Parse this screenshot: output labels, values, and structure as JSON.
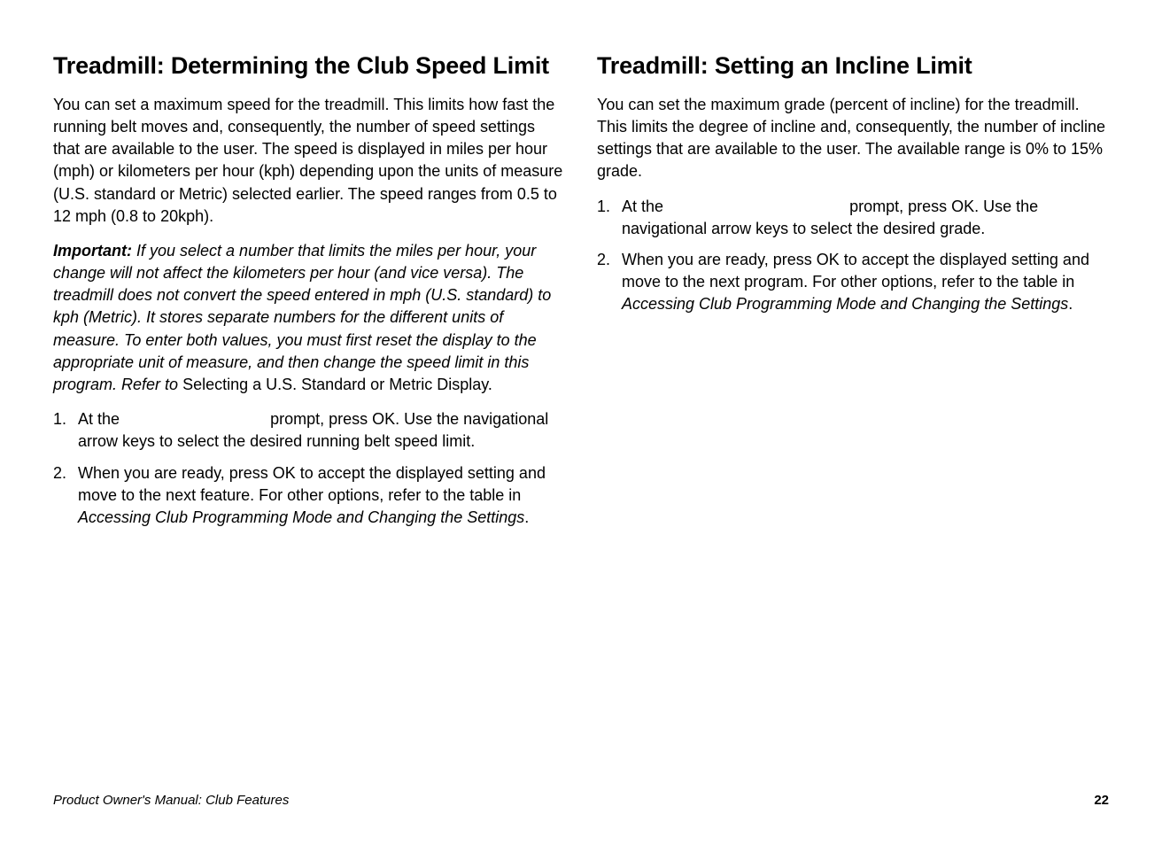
{
  "leftColumn": {
    "heading": "Treadmill: Determining the Club Speed Limit",
    "intro": "You can set a maximum speed for the treadmill. This limits how fast the running belt moves and, consequently, the number of speed settings that are available to the user. The speed is displayed in miles per hour (mph) or kilometers per hour (kph) depending upon the units of measure (U.S. standard or Metric) selected earlier. The speed ranges from 0.5 to 12 mph (0.8 to 20kph).",
    "importantLabel": "Important:",
    "importantItalic": " If you select a number that limits the miles per hour, your change will not affect the kilometers per hour (and vice versa). The treadmill does not convert the speed entered in mph (U.S. standard) to kph (Metric). It stores separate numbers for the different units of measure. To enter both values, you must first reset the display to the appropriate unit of measure, and then change the speed limit in this program. Refer to ",
    "importantTail": "Selecting a U.S. Standard or Metric Display.",
    "step1a": "At the ",
    "step1gap": "                                ",
    "step1b": " prompt, press OK. Use the navigational arrow keys to select the desired running belt speed limit.",
    "step2a": "When you are ready, press OK to accept the displayed setting and move to the next feature. For other options, refer to the table in ",
    "step2ital": "Accessing Club Programming Mode and Changing the Settings",
    "step2b": "."
  },
  "rightColumn": {
    "heading": "Treadmill: Setting an Incline Limit",
    "intro": "You can set the maximum grade (percent of incline) for the treadmill. This limits the degree of incline and, consequently, the number of incline settings that are available to the user. The available range is 0% to 15% grade.",
    "step1a": "At the ",
    "step1gap": "                                        ",
    "step1b": " prompt, press OK. Use the navigational arrow keys to select the desired grade.",
    "step2a": "When you are ready, press OK to accept the displayed setting and move to the next program. For other options, refer to the table in ",
    "step2ital": "Accessing Club Programming Mode and Changing the Settings",
    "step2b": "."
  },
  "footer": {
    "left": "Product Owner's Manual: Club Features",
    "pageNumber": "22"
  },
  "colors": {
    "text": "#000000",
    "background": "#ffffff"
  },
  "typography": {
    "headingSizePx": 27,
    "bodySizePx": 18,
    "footerSizePx": 15,
    "fontFamily": "Helvetica, Arial, sans-serif"
  }
}
